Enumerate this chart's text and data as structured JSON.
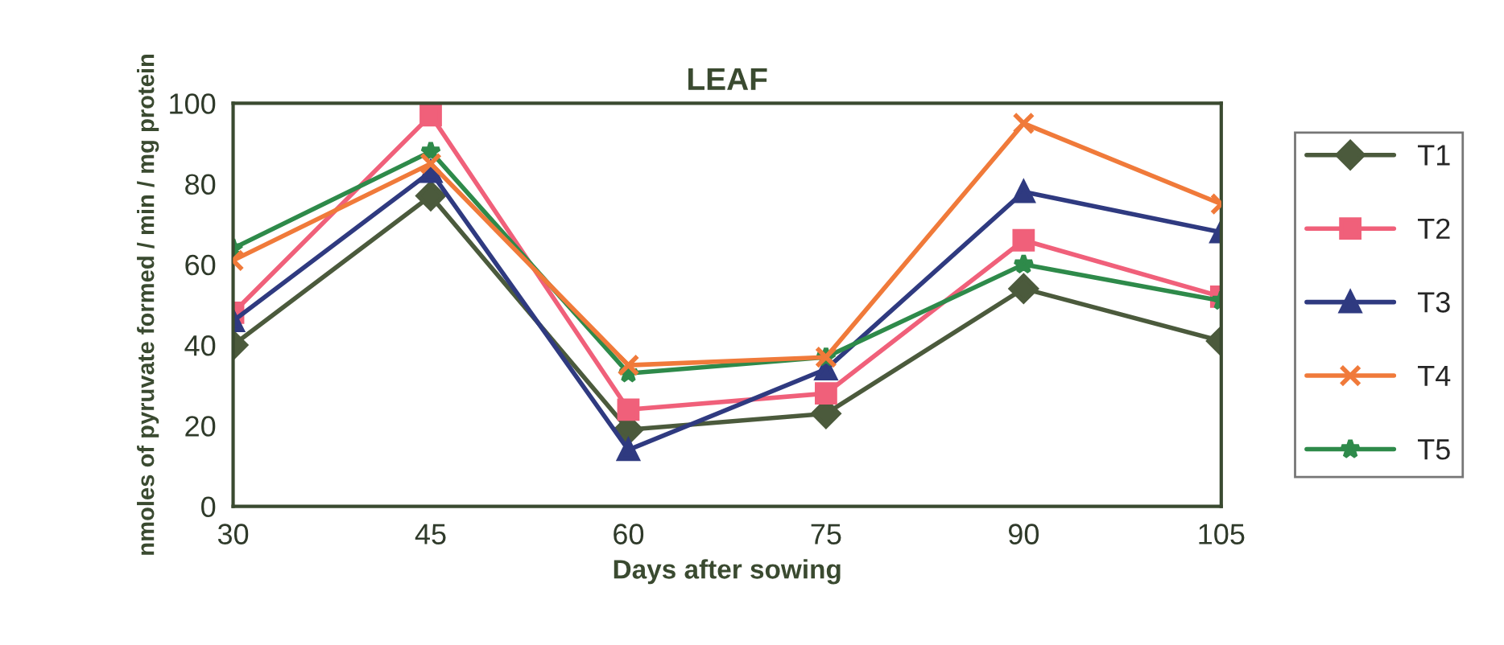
{
  "chart_data": {
    "type": "line",
    "title": "LEAF",
    "xlabel": "Days after sowing",
    "ylabel": "nmoles of pyruvate formed / min / mg protein",
    "x": [
      30,
      45,
      60,
      75,
      90,
      105
    ],
    "xlim": [
      30,
      105
    ],
    "xticks": [
      30,
      45,
      60,
      75,
      90,
      105
    ],
    "ylim": [
      0,
      100
    ],
    "yticks": [
      0,
      20,
      40,
      60,
      80,
      100
    ],
    "grid": false,
    "legend": "right",
    "line_style": "solid",
    "series": [
      {
        "name": "T1",
        "color": "#4b5a3c",
        "marker": "diamond",
        "values": [
          40,
          77,
          19,
          23,
          54,
          41
        ]
      },
      {
        "name": "T2",
        "color": "#f0607a",
        "marker": "square",
        "values": [
          48,
          97,
          24,
          28,
          66,
          52
        ]
      },
      {
        "name": "T3",
        "color": "#2f3a80",
        "marker": "triangle",
        "values": [
          46,
          83,
          14,
          34,
          78,
          68
        ]
      },
      {
        "name": "T4",
        "color": "#f07a3a",
        "marker": "cross",
        "values": [
          61,
          85,
          35,
          37,
          95,
          75
        ]
      },
      {
        "name": "T5",
        "color": "#2e8a4a",
        "marker": "star",
        "values": [
          64,
          88,
          33,
          37,
          60,
          51
        ]
      }
    ]
  }
}
